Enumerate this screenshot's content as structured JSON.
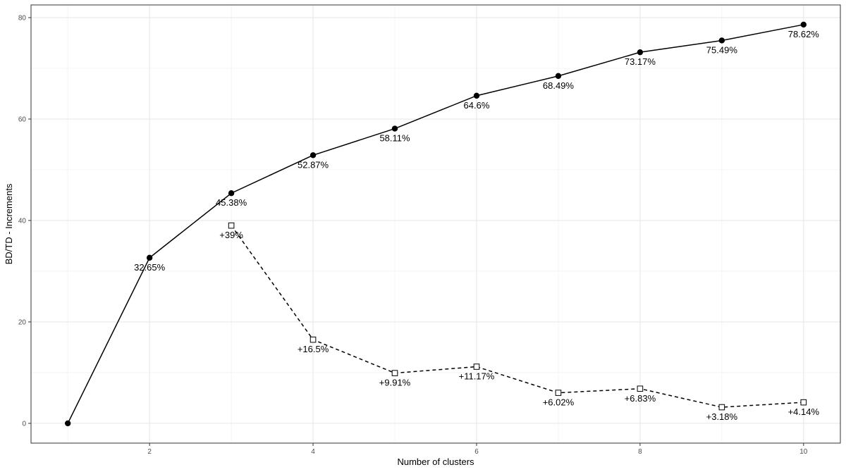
{
  "chart_data": {
    "type": "line",
    "xlabel": "Number of clusters",
    "ylabel": "BD/TD - Increments",
    "xlim": [
      0.55,
      10.45
    ],
    "ylim": [
      -3.9,
      82.5
    ],
    "x_ticks": [
      2,
      4,
      6,
      8,
      10
    ],
    "y_ticks": [
      0,
      20,
      40,
      60,
      80
    ],
    "grid": true,
    "series": [
      {
        "marker": "filled-circle",
        "line": "solid",
        "x": [
          1,
          2,
          3,
          4,
          5,
          6,
          7,
          8,
          9,
          10
        ],
        "y": [
          0,
          32.65,
          45.38,
          52.87,
          58.11,
          64.6,
          68.49,
          73.17,
          75.49,
          78.62
        ],
        "labels": [
          "",
          "32.65%",
          "45.38%",
          "52.87%",
          "58.11%",
          "64.6%",
          "68.49%",
          "73.17%",
          "75.49%",
          "78.62%"
        ]
      },
      {
        "marker": "open-square",
        "line": "dashed",
        "x": [
          3,
          4,
          5,
          6,
          7,
          8,
          9,
          10
        ],
        "y": [
          39,
          16.5,
          9.91,
          11.17,
          6.02,
          6.83,
          3.18,
          4.14
        ],
        "labels": [
          "+39%",
          "+16.5%",
          "+9.91%",
          "+11.17%",
          "+6.02%",
          "+6.83%",
          "+3.18%",
          "+4.14%"
        ]
      }
    ]
  }
}
